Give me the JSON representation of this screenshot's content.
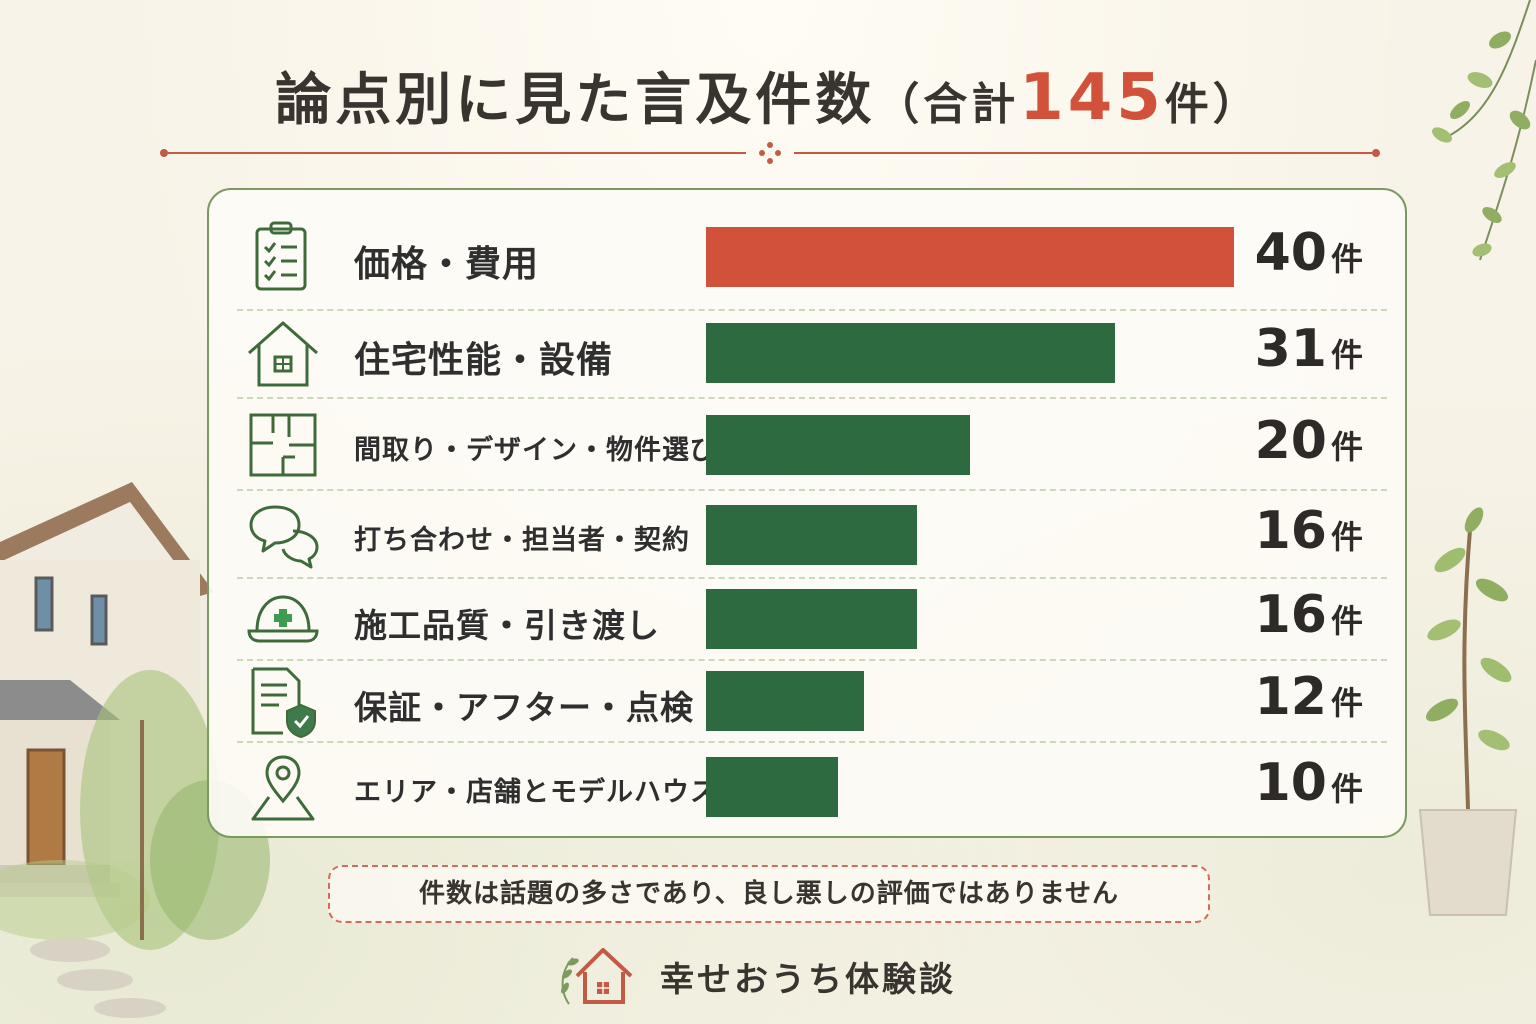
{
  "title": {
    "main": "論点別に見た言及件数",
    "paren_open": "（合計",
    "total": "145",
    "unit": "件",
    "paren_close": "）"
  },
  "colors": {
    "accent": "#d2513a",
    "bar_highlight": "#d2513a",
    "bar_default": "#2e6a40",
    "icon_stroke": "#3f6b3a",
    "panel_border": "#7a9a62"
  },
  "chart_data": {
    "type": "bar",
    "orientation": "horizontal",
    "title": "論点別に見た言及件数（合計145件）",
    "total": 145,
    "unit": "件",
    "xlim": [
      0,
      40
    ],
    "grid": false,
    "categories": [
      "価格・費用",
      "住宅性能・設備",
      "間取り・デザイン・物件選び",
      "打ち合わせ・担当者・契約",
      "施工品質・引き渡し",
      "保証・アフター・点検",
      "エリア・店舗とモデルハウス"
    ],
    "values": [
      40,
      31,
      20,
      16,
      16,
      12,
      10
    ],
    "value_labels": [
      "40",
      "31",
      "20",
      "16",
      "16",
      "12",
      "10"
    ],
    "icons": [
      "clipboard-checklist-icon",
      "house-icon",
      "floor-plan-icon",
      "speech-bubbles-icon",
      "hard-hat-icon",
      "document-shield-icon",
      "map-pin-icon"
    ],
    "highlight_index": 0
  },
  "note": "件数は話題の多さであり、良し悪しの評価ではありません",
  "brand": {
    "name": "幸せおうち体験談",
    "icon": "house-leaf-logo-icon"
  }
}
